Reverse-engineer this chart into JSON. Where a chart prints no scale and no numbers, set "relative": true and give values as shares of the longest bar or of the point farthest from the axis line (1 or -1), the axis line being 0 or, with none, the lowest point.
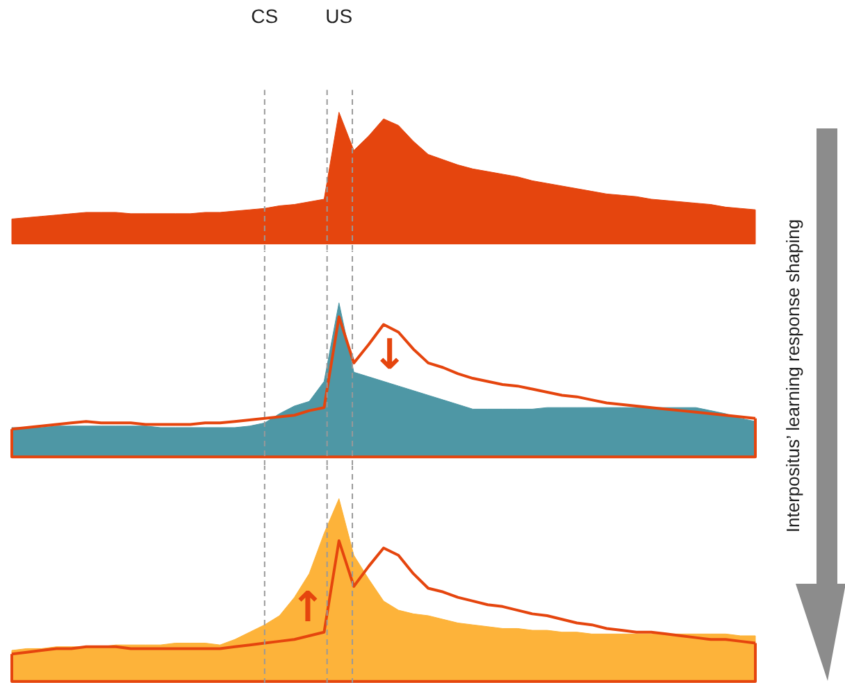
{
  "chart_data": [
    {
      "type": "area",
      "relative": true,
      "tick_labels": "x",
      "categories": [
        null,
        null,
        null,
        null,
        null,
        null,
        null,
        null,
        null,
        null,
        null,
        null,
        null,
        null,
        null,
        null,
        null,
        "CS",
        null,
        null,
        null,
        null,
        "US",
        null,
        null,
        null,
        null,
        null,
        null,
        null,
        null,
        null,
        null,
        null,
        null,
        null,
        null,
        null,
        null,
        null,
        null,
        null,
        null,
        null,
        null,
        null,
        null,
        null,
        null,
        null,
        null
      ],
      "series": [
        {
          "color": "#e5450e",
          "values": [
            0.19,
            0.2,
            0.21,
            0.22,
            0.23,
            0.24,
            0.24,
            0.24,
            0.23,
            0.23,
            0.23,
            0.23,
            0.23,
            0.24,
            0.24,
            0.25,
            0.26,
            0.27,
            0.29,
            0.3,
            0.32,
            0.34,
            1.0,
            0.71,
            0.82,
            0.95,
            0.9,
            0.78,
            0.68,
            0.64,
            0.6,
            0.57,
            0.55,
            0.53,
            0.51,
            0.48,
            0.46,
            0.44,
            0.42,
            0.4,
            0.38,
            0.37,
            0.36,
            0.34,
            0.33,
            0.32,
            0.31,
            0.3,
            0.28,
            0.27,
            0.26
          ]
        }
      ],
      "ref_lines": [
        {
          "axis": "x",
          "value": "CS",
          "color": "#999999",
          "line_style": "dashed"
        }
      ],
      "annotations": [
        "Interpositus’ learning response shaping"
      ]
    },
    {
      "type": "area",
      "relative": true,
      "tick_labels": false,
      "categories": [
        null,
        null,
        null,
        null,
        null,
        null,
        null,
        null,
        null,
        null,
        null,
        null,
        null,
        null,
        null,
        null,
        null,
        null,
        null,
        null,
        null,
        null,
        null,
        null,
        null,
        null,
        null,
        null,
        null,
        null,
        null,
        null,
        null,
        null,
        null,
        null,
        null,
        null,
        null,
        null,
        null,
        null,
        null,
        null,
        null,
        null,
        null,
        null,
        null,
        null,
        null
      ],
      "series": [
        {
          "color": "#4e97a5",
          "values": [
            0.19,
            0.19,
            0.19,
            0.2,
            0.2,
            0.2,
            0.2,
            0.2,
            0.2,
            0.2,
            0.19,
            0.19,
            0.19,
            0.19,
            0.19,
            0.19,
            0.2,
            0.22,
            0.28,
            0.33,
            0.36,
            0.49,
            1.0,
            0.55,
            0.52,
            0.49,
            0.46,
            0.43,
            0.4,
            0.37,
            0.34,
            0.31,
            0.31,
            0.31,
            0.31,
            0.31,
            0.32,
            0.32,
            0.32,
            0.32,
            0.32,
            0.32,
            0.32,
            0.32,
            0.32,
            0.32,
            0.32,
            0.3,
            0.28,
            0.25,
            0.23
          ]
        },
        {
          "type": "line",
          "color": "#e5450e",
          "values": [
            0.18,
            0.19,
            0.2,
            0.21,
            0.22,
            0.23,
            0.22,
            0.22,
            0.22,
            0.21,
            0.21,
            0.21,
            0.21,
            0.22,
            0.22,
            0.23,
            0.24,
            0.25,
            0.26,
            0.27,
            0.3,
            0.32,
            0.91,
            0.61,
            0.73,
            0.86,
            0.81,
            0.7,
            0.61,
            0.58,
            0.54,
            0.51,
            0.49,
            0.47,
            0.46,
            0.44,
            0.42,
            0.4,
            0.39,
            0.37,
            0.35,
            0.34,
            0.33,
            0.32,
            0.31,
            0.3,
            0.29,
            0.28,
            0.27,
            0.26,
            0.25
          ]
        }
      ],
      "annotations": [
        "↓"
      ]
    },
    {
      "type": "area",
      "relative": true,
      "tick_labels": false,
      "categories": [
        null,
        null,
        null,
        null,
        null,
        null,
        null,
        null,
        null,
        null,
        null,
        null,
        null,
        null,
        null,
        null,
        null,
        null,
        null,
        null,
        null,
        null,
        null,
        null,
        null,
        null,
        null,
        null,
        null,
        null,
        null,
        null,
        null,
        null,
        null,
        null,
        null,
        null,
        null,
        null,
        null,
        null,
        null,
        null,
        null,
        null,
        null,
        null,
        null,
        null,
        null
      ],
      "series": [
        {
          "color": "#fdb33a",
          "values": [
            0.17,
            0.18,
            0.18,
            0.19,
            0.19,
            0.19,
            0.19,
            0.2,
            0.2,
            0.2,
            0.2,
            0.21,
            0.21,
            0.21,
            0.2,
            0.23,
            0.27,
            0.31,
            0.36,
            0.46,
            0.59,
            0.81,
            1.0,
            0.69,
            0.56,
            0.44,
            0.39,
            0.37,
            0.36,
            0.34,
            0.32,
            0.31,
            0.3,
            0.29,
            0.29,
            0.28,
            0.28,
            0.27,
            0.27,
            0.26,
            0.26,
            0.26,
            0.26,
            0.26,
            0.26,
            0.26,
            0.26,
            0.26,
            0.26,
            0.25,
            0.25
          ]
        },
        {
          "type": "line",
          "color": "#e5450e",
          "values": [
            0.15,
            0.16,
            0.17,
            0.18,
            0.18,
            0.19,
            0.19,
            0.19,
            0.18,
            0.18,
            0.18,
            0.18,
            0.18,
            0.18,
            0.18,
            0.19,
            0.2,
            0.21,
            0.22,
            0.23,
            0.25,
            0.27,
            0.77,
            0.52,
            0.63,
            0.73,
            0.69,
            0.59,
            0.51,
            0.49,
            0.46,
            0.44,
            0.42,
            0.41,
            0.39,
            0.37,
            0.36,
            0.34,
            0.32,
            0.31,
            0.29,
            0.28,
            0.27,
            0.27,
            0.26,
            0.25,
            0.24,
            0.23,
            0.23,
            0.22,
            0.21
          ]
        }
      ],
      "annotations": [
        "↑"
      ]
    }
  ]
}
